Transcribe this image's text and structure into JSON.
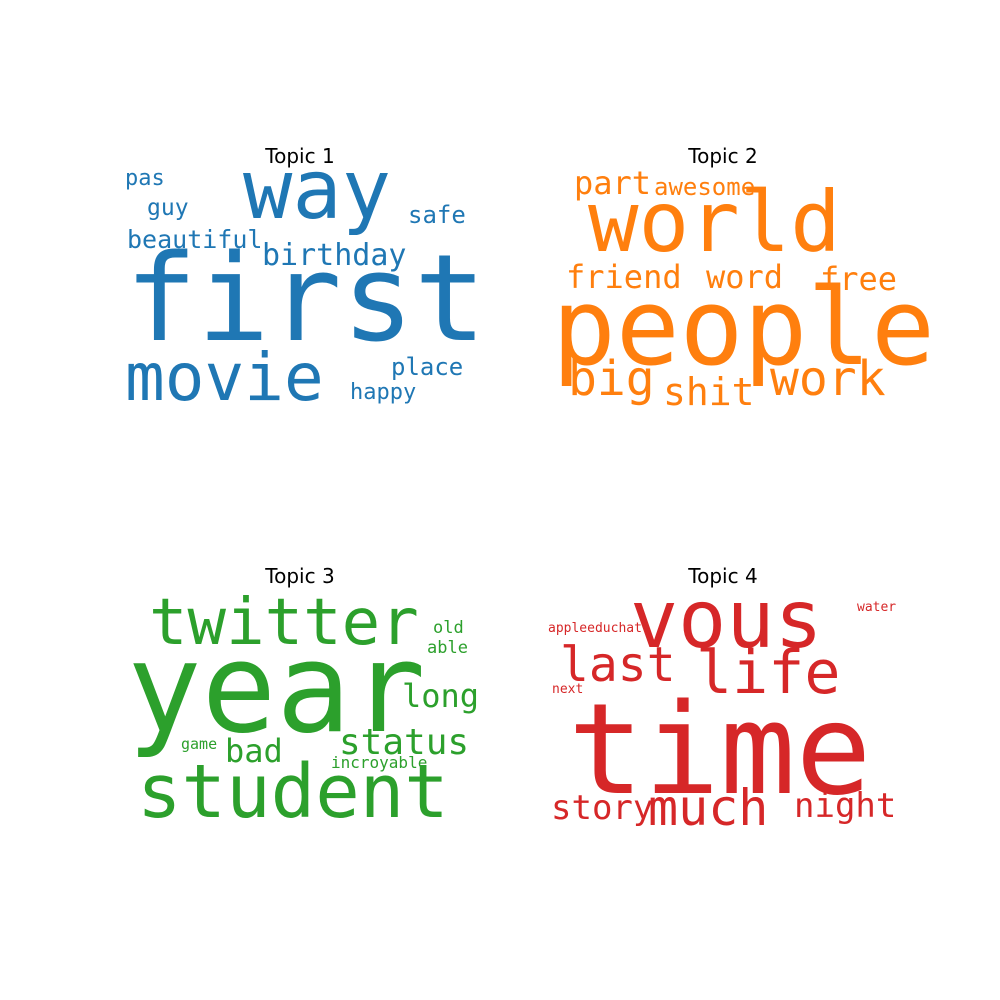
{
  "chart_data": {
    "type": "wordcloud",
    "panels": [
      {
        "title": "Topic 1",
        "color": "#1f77b4",
        "words": [
          "first",
          "way",
          "movie",
          "birthday",
          "beautiful",
          "safe",
          "place",
          "happy",
          "guy",
          "pas"
        ]
      },
      {
        "title": "Topic 2",
        "color": "#ff7f0e",
        "words": [
          "people",
          "world",
          "work",
          "big",
          "shit",
          "friend",
          "word",
          "free",
          "part",
          "awesome"
        ]
      },
      {
        "title": "Topic 3",
        "color": "#2ca02c",
        "words": [
          "year",
          "student",
          "twitter",
          "status",
          "long",
          "bad",
          "old",
          "able",
          "game",
          "incroyable"
        ]
      },
      {
        "title": "Topic 4",
        "color": "#d62728",
        "words": [
          "time",
          "vous",
          "life",
          "last",
          "much",
          "night",
          "story",
          "appleeduchat",
          "next",
          "water"
        ]
      }
    ]
  }
}
